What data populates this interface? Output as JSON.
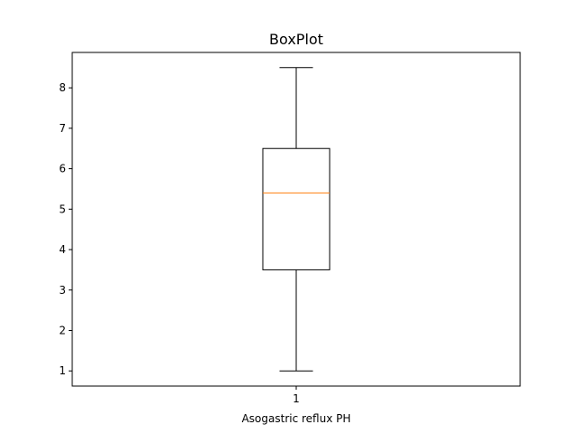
{
  "chart_data": {
    "type": "box",
    "title": "BoxPlot",
    "xlabel": "Asogastric reflux PH",
    "ylabel": "",
    "ylim": [
      0.625,
      8.875
    ],
    "yticks": [
      1,
      2,
      3,
      4,
      5,
      6,
      7,
      8
    ],
    "grid": false,
    "categories": [
      "1"
    ],
    "boxes": [
      {
        "category": "1",
        "whisker_low": 1.0,
        "q1": 3.5,
        "median": 5.4,
        "q3": 6.5,
        "whisker_high": 8.5
      }
    ],
    "colors": {
      "box": "#000000",
      "median": "#ff7f0e",
      "axes": "#000000"
    }
  }
}
